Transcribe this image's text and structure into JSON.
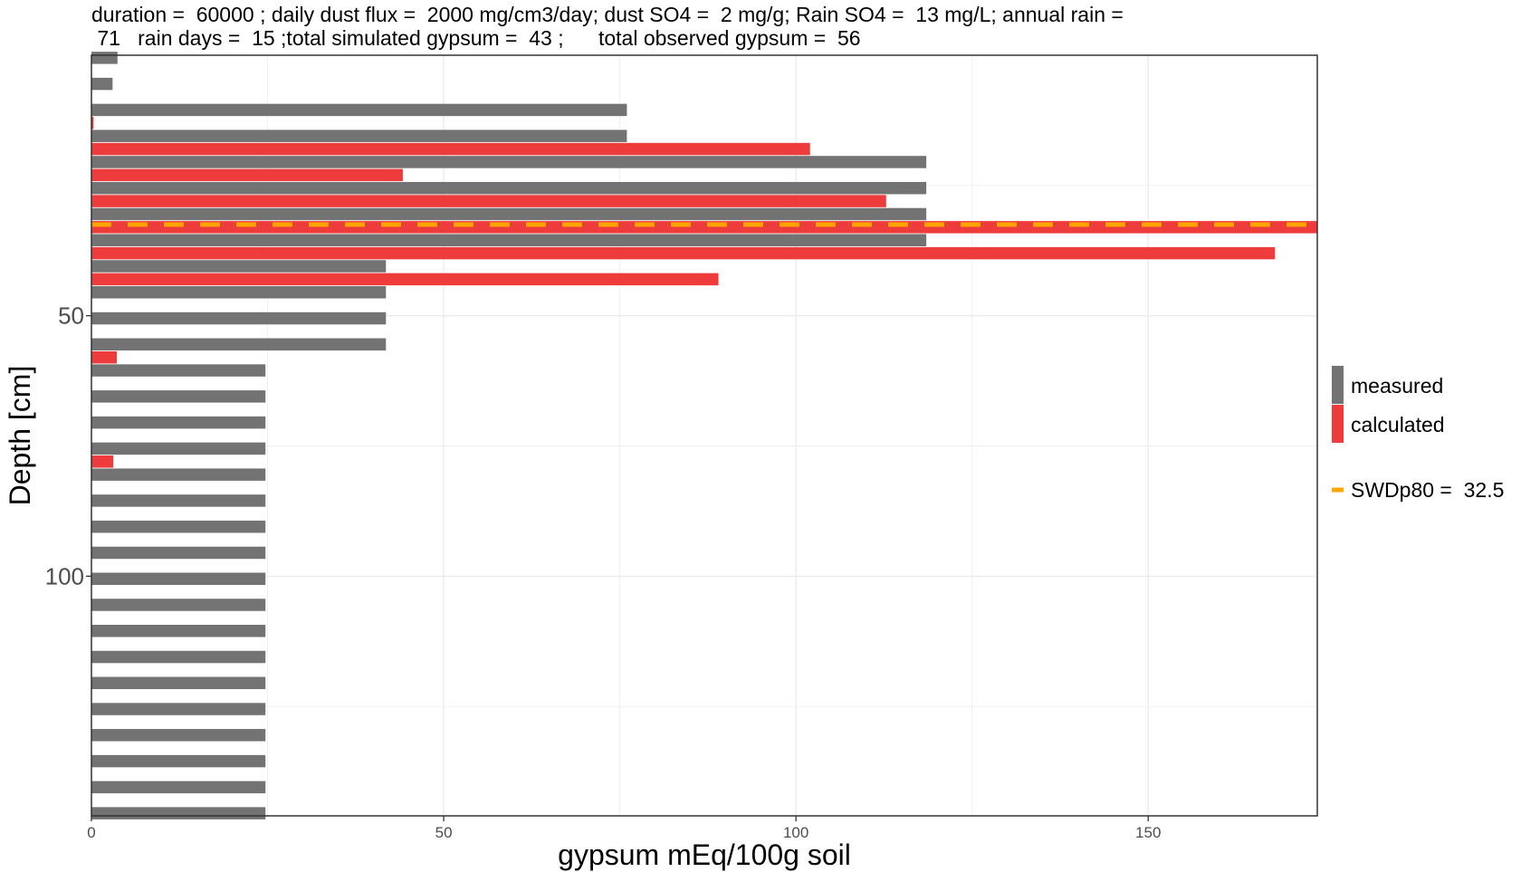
{
  "chart_data": {
    "type": "bar",
    "orientation": "horizontal",
    "title_lines": [
      "duration =  60000 ; daily dust flux =  2000 mg/cm3/day; dust SO4 =  2 mg/g; Rain SO4 =  13 mg/L; annual rain =",
      " 71   rain days =  15 ;total simulated gypsum =  43 ;      total observed gypsum =  56"
    ],
    "xlabel": "gypsum mEq/100g soil",
    "ylabel": "Depth [cm]",
    "xlim": [
      0,
      174
    ],
    "ylim": [
      146,
      0
    ],
    "x_ticks": [
      0,
      50,
      100,
      150
    ],
    "x_tick_labels": [
      "0",
      "50",
      "100",
      "150"
    ],
    "y_ticks": [
      50,
      100
    ],
    "y_tick_labels": [
      "50",
      "100"
    ],
    "grid": true,
    "legend_position": "right",
    "series": [
      {
        "name": "measured",
        "color": "#737373",
        "depths": [
          0.5,
          5.5,
          10.5,
          15.5,
          20.5,
          25.5,
          30.5,
          35.5,
          40.5,
          45.5,
          50.5,
          55.5,
          60.5,
          65.5,
          70.5,
          75.5,
          80.5,
          85.5,
          90.5,
          95.5,
          100.5,
          105.5,
          110.5,
          115.5,
          120.5,
          125.5,
          130.5,
          135.5,
          140.5,
          145.5
        ],
        "values": [
          3.7,
          3,
          76,
          76,
          118.5,
          118.5,
          118.5,
          118.5,
          41.8,
          41.8,
          41.8,
          41.8,
          24.7,
          24.7,
          24.7,
          24.7,
          24.7,
          24.7,
          24.7,
          24.7,
          24.7,
          24.7,
          24.7,
          24.7,
          24.7,
          24.7,
          24.7,
          24.7,
          24.7,
          24.7
        ]
      },
      {
        "name": "calculated",
        "color": "#ee3b3b",
        "depths": [
          13,
          18,
          23,
          28,
          33,
          38,
          43,
          58,
          78
        ],
        "values": [
          0.3,
          102,
          44.2,
          112.8,
          174,
          168,
          89,
          3.6,
          3.1
        ]
      }
    ],
    "reference_line": {
      "label_text": "SWDp80 =  32.5",
      "value": 32.5,
      "color": "#ffa500",
      "style": "dashed"
    }
  }
}
